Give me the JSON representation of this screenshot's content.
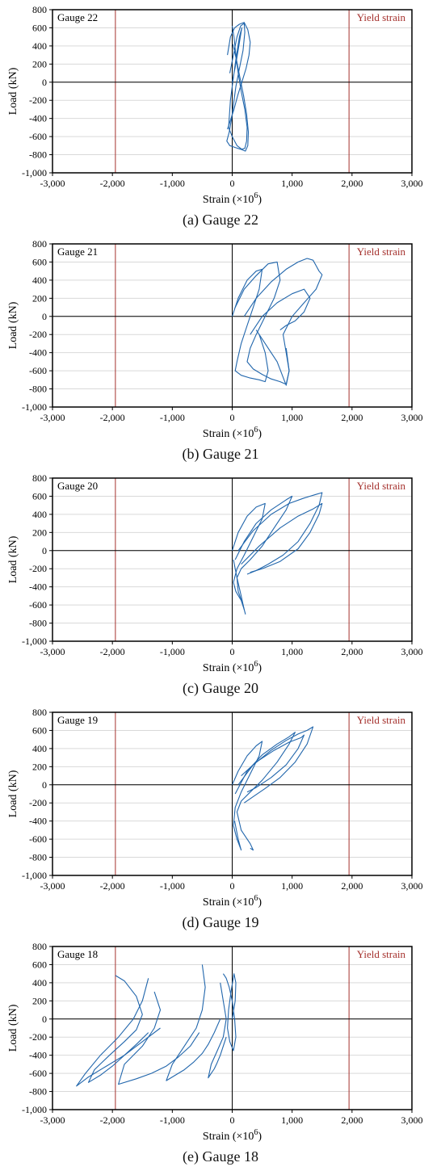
{
  "chart_data": [
    {
      "type": "line",
      "gauge_label": "Gauge 22",
      "caption": "(a) Gauge 22",
      "xlabel": "Strain (×10",
      "xlabel_exp": "6",
      "xlabel_close": ")",
      "ylabel": "Load (kN)",
      "xlim": [
        -3000,
        3000
      ],
      "ylim": [
        -1000,
        800
      ],
      "xticks": [
        -3000,
        -2000,
        -1000,
        0,
        1000,
        2000,
        3000
      ],
      "xtick_labels": [
        "-3,000",
        "-2,000",
        "-1,000",
        "0",
        "1,000",
        "2,000",
        "3,000"
      ],
      "yticks": [
        -1000,
        -800,
        -600,
        -400,
        -200,
        0,
        200,
        400,
        600,
        800
      ],
      "ytick_labels": [
        "-1,000",
        "-800",
        "-600",
        "-400",
        "-200",
        "0",
        "200",
        "400",
        "600",
        "800"
      ],
      "yield_strain": [
        -1950,
        1950
      ],
      "yield_label": "Yield strain",
      "grid": "horizontal",
      "series_color": "#2166ac",
      "series": [
        {
          "x": [
            0,
            60,
            110,
            160,
            120,
            60,
            10,
            -30,
            -60,
            0,
            80,
            160,
            210,
            240,
            250,
            210,
            150,
            100,
            60,
            30,
            0
          ],
          "y": [
            0,
            200,
            400,
            600,
            500,
            250,
            0,
            -200,
            -500,
            -600,
            -700,
            -740,
            -730,
            -650,
            -500,
            -300,
            -100,
            100,
            300,
            500,
            620
          ]
        },
        {
          "x": [
            -40,
            20,
            80,
            140,
            200,
            210,
            180,
            120,
            60,
            20,
            -10,
            -50,
            -90,
            -40,
            50,
            140,
            220,
            260,
            270,
            240,
            190,
            130,
            70,
            10
          ],
          "y": [
            100,
            300,
            500,
            620,
            650,
            550,
            350,
            150,
            -50,
            -250,
            -400,
            -550,
            -650,
            -700,
            -720,
            -740,
            -760,
            -700,
            -550,
            -350,
            -150,
            50,
            250,
            420
          ]
        },
        {
          "x": [
            -80,
            -30,
            40,
            120,
            200,
            260,
            300,
            280,
            230,
            160,
            90,
            30,
            -30,
            -80
          ],
          "y": [
            300,
            500,
            600,
            640,
            660,
            580,
            440,
            300,
            150,
            0,
            -150,
            -300,
            -420,
            -520
          ]
        }
      ]
    },
    {
      "type": "line",
      "gauge_label": "Gauge 21",
      "caption": "(b) Gauge 21",
      "xlabel": "Strain (×10",
      "xlabel_exp": "6",
      "xlabel_close": ")",
      "ylabel": "Load (kN)",
      "xlim": [
        -3000,
        3000
      ],
      "ylim": [
        -1000,
        800
      ],
      "xticks": [
        -3000,
        -2000,
        -1000,
        0,
        1000,
        2000,
        3000
      ],
      "xtick_labels": [
        "-3,000",
        "-2,000",
        "-1,000",
        "0",
        "1,000",
        "2,000",
        "3,000"
      ],
      "yticks": [
        -1000,
        -800,
        -600,
        -400,
        -200,
        0,
        200,
        400,
        600,
        800
      ],
      "ytick_labels": [
        "-1,000",
        "-800",
        "-600",
        "-400",
        "-200",
        "0",
        "200",
        "400",
        "600",
        "800"
      ],
      "yield_strain": [
        -1950,
        1950
      ],
      "yield_label": "Yield strain",
      "grid": "horizontal",
      "series_color": "#2166ac",
      "series": [
        {
          "x": [
            0,
            100,
            250,
            400,
            500,
            450,
            350,
            250,
            150,
            80,
            50,
            150,
            300,
            450,
            550,
            600,
            550,
            450
          ],
          "y": [
            0,
            200,
            400,
            500,
            520,
            300,
            100,
            -100,
            -300,
            -500,
            -600,
            -650,
            -680,
            -700,
            -720,
            -600,
            -400,
            -200
          ]
        },
        {
          "x": [
            50,
            200,
            400,
            600,
            750,
            800,
            700,
            550,
            400,
            300,
            250,
            350,
            500,
            650,
            800,
            900,
            950,
            900
          ],
          "y": [
            100,
            300,
            450,
            580,
            600,
            400,
            200,
            0,
            -200,
            -350,
            -500,
            -580,
            -640,
            -690,
            -720,
            -750,
            -600,
            -350
          ]
        },
        {
          "x": [
            200,
            400,
            650,
            900,
            1100,
            1250,
            1350,
            1400,
            1450,
            1500,
            1400,
            1200,
            1000,
            850,
            900,
            950,
            900,
            750,
            550,
            400
          ],
          "y": [
            0,
            200,
            380,
            520,
            600,
            640,
            620,
            560,
            500,
            460,
            300,
            150,
            0,
            -200,
            -400,
            -600,
            -760,
            -500,
            -300,
            -150
          ]
        },
        {
          "x": [
            300,
            500,
            750,
            1000,
            1200,
            1300,
            1200,
            1050,
            900,
            800
          ],
          "y": [
            -200,
            0,
            150,
            250,
            300,
            200,
            50,
            -50,
            -100,
            -150
          ]
        }
      ]
    },
    {
      "type": "line",
      "gauge_label": "Gauge 20",
      "caption": "(c) Gauge 20",
      "xlabel": "Strain (×10",
      "xlabel_exp": "6",
      "xlabel_close": ")",
      "ylabel": "Load (kN)",
      "xlim": [
        -3000,
        3000
      ],
      "ylim": [
        -1000,
        800
      ],
      "xticks": [
        -3000,
        -2000,
        -1000,
        0,
        1000,
        2000,
        3000
      ],
      "xtick_labels": [
        "-3,000",
        "-2,000",
        "-1,000",
        "0",
        "1,000",
        "2,000",
        "3,000"
      ],
      "yticks": [
        -1000,
        -800,
        -600,
        -400,
        -200,
        0,
        200,
        400,
        600,
        800
      ],
      "ytick_labels": [
        "-1,000",
        "-800",
        "-600",
        "-400",
        "-200",
        "0",
        "200",
        "400",
        "600",
        "800"
      ],
      "yield_strain": [
        -1950,
        1950
      ],
      "yield_label": "Yield strain",
      "grid": "horizontal",
      "series_color": "#2166ac",
      "series": [
        {
          "x": [
            0,
            100,
            250,
            400,
            550,
            500,
            350,
            200,
            80,
            20,
            60,
            150,
            200,
            150,
            80,
            20
          ],
          "y": [
            0,
            200,
            380,
            480,
            520,
            350,
            150,
            -50,
            -200,
            -350,
            -450,
            -550,
            -650,
            -500,
            -300,
            -100
          ]
        },
        {
          "x": [
            50,
            200,
            400,
            650,
            900,
            1000,
            900,
            700,
            500,
            300,
            150,
            80,
            100,
            180,
            220,
            180
          ],
          "y": [
            -100,
            100,
            300,
            450,
            560,
            600,
            450,
            250,
            50,
            -100,
            -200,
            -300,
            -450,
            -600,
            -700,
            -600
          ]
        },
        {
          "x": [
            100,
            350,
            650,
            950,
            1200,
            1400,
            1500,
            1450,
            1300,
            1100,
            850,
            600,
            400,
            250
          ],
          "y": [
            0,
            220,
            400,
            520,
            580,
            620,
            640,
            500,
            300,
            100,
            -50,
            -150,
            -220,
            -260
          ]
        },
        {
          "x": [
            150,
            450,
            800,
            1100,
            1350,
            1500,
            1450,
            1300,
            1100,
            800,
            500,
            300
          ],
          "y": [
            -150,
            50,
            250,
            380,
            460,
            520,
            400,
            200,
            20,
            -120,
            -200,
            -240
          ]
        }
      ]
    },
    {
      "type": "line",
      "gauge_label": "Gauge 19",
      "caption": "(d) Gauge 19",
      "xlabel": "Strain (×10",
      "xlabel_exp": "6",
      "xlabel_close": ")",
      "ylabel": "Load (kN)",
      "xlim": [
        -3000,
        3000
      ],
      "ylim": [
        -1000,
        800
      ],
      "xticks": [
        -3000,
        -2000,
        -1000,
        0,
        1000,
        2000,
        3000
      ],
      "xtick_labels": [
        "-3,000",
        "-2,000",
        "-1,000",
        "0",
        "1,000",
        "2,000",
        "3,000"
      ],
      "yticks": [
        -1000,
        -800,
        -600,
        -400,
        -200,
        0,
        200,
        400,
        600,
        800
      ],
      "ytick_labels": [
        "-1,000",
        "-800",
        "-600",
        "-400",
        "-200",
        "0",
        "200",
        "400",
        "600",
        "800"
      ],
      "yield_strain": [
        -1950,
        1950
      ],
      "yield_label": "Yield strain",
      "grid": "horizontal",
      "series_color": "#2166ac",
      "series": [
        {
          "x": [
            0,
            100,
            250,
            400,
            500,
            450,
            300,
            150,
            50,
            20,
            80,
            150,
            100,
            40
          ],
          "y": [
            0,
            150,
            320,
            430,
            480,
            320,
            120,
            -80,
            -250,
            -450,
            -600,
            -720,
            -600,
            -400
          ]
        },
        {
          "x": [
            50,
            250,
            500,
            750,
            950,
            1050,
            950,
            750,
            500,
            300,
            150,
            80,
            150,
            300,
            350,
            300
          ],
          "y": [
            -100,
            150,
            330,
            450,
            530,
            580,
            450,
            250,
            50,
            -80,
            -180,
            -300,
            -500,
            -650,
            -720,
            -700
          ]
        },
        {
          "x": [
            100,
            350,
            650,
            900,
            1100,
            1250,
            1350,
            1250,
            1050,
            800,
            550,
            350,
            200
          ],
          "y": [
            0,
            220,
            380,
            490,
            560,
            600,
            640,
            450,
            250,
            80,
            -40,
            -130,
            -200
          ]
        },
        {
          "x": [
            150,
            400,
            700,
            950,
            1150,
            1200,
            1100,
            900,
            650,
            400,
            250
          ],
          "y": [
            100,
            250,
            380,
            470,
            520,
            550,
            400,
            220,
            80,
            -30,
            -80
          ]
        }
      ]
    },
    {
      "type": "line",
      "gauge_label": "Gauge 18",
      "caption": "(e) Gauge 18",
      "xlabel": "Strain (×10",
      "xlabel_exp": "6",
      "xlabel_close": ")",
      "ylabel": "Load (kN)",
      "xlim": [
        -3000,
        3000
      ],
      "ylim": [
        -1000,
        800
      ],
      "xticks": [
        -3000,
        -2000,
        -1000,
        0,
        1000,
        2000,
        3000
      ],
      "xtick_labels": [
        "-3,000",
        "-2,000",
        "-1,000",
        "0",
        "1,000",
        "2,000",
        "3,000"
      ],
      "yticks": [
        -1000,
        -800,
        -600,
        -400,
        -200,
        0,
        200,
        400,
        600,
        800
      ],
      "ytick_labels": [
        "-1,000",
        "-800",
        "-600",
        "-400",
        "-200",
        "0",
        "200",
        "400",
        "600",
        "800"
      ],
      "yield_strain": [
        -1950,
        1950
      ],
      "yield_label": "Yield strain",
      "grid": "horizontal",
      "series_color": "#2166ac",
      "series": [
        {
          "x": [
            0,
            50,
            60,
            30,
            -20,
            -60,
            -80,
            -40,
            20,
            60,
            40,
            0,
            -50,
            -100,
            -150
          ],
          "y": [
            0,
            200,
            400,
            500,
            300,
            100,
            -100,
            -250,
            -350,
            -200,
            0,
            200,
            350,
            450,
            500
          ]
        },
        {
          "x": [
            -100,
            -150,
            -200,
            -250,
            -300,
            -350,
            -400,
            -350,
            -250,
            -150,
            -100,
            -150,
            -200
          ],
          "y": [
            -200,
            -300,
            -400,
            -480,
            -550,
            -600,
            -650,
            -500,
            -350,
            -200,
            0,
            200,
            400
          ]
        },
        {
          "x": [
            -200,
            -300,
            -400,
            -500,
            -650,
            -800,
            -950,
            -1100,
            -1000,
            -800,
            -600,
            -500,
            -450,
            -500
          ],
          "y": [
            0,
            -150,
            -280,
            -380,
            -480,
            -560,
            -620,
            -680,
            -500,
            -300,
            -100,
            100,
            350,
            600
          ]
        },
        {
          "x": [
            -550,
            -700,
            -900,
            -1100,
            -1350,
            -1600,
            -1900,
            -1800,
            -1500,
            -1300,
            -1200,
            -1300
          ],
          "y": [
            -150,
            -300,
            -420,
            -520,
            -600,
            -660,
            -720,
            -500,
            -300,
            -100,
            100,
            300
          ]
        },
        {
          "x": [
            -1200,
            -1500,
            -1800,
            -2100,
            -2400,
            -2600,
            -2450,
            -2200,
            -1900,
            -1650,
            -1500,
            -1400
          ],
          "y": [
            -100,
            -250,
            -400,
            -520,
            -640,
            -740,
            -600,
            -400,
            -200,
            0,
            200,
            450
          ]
        },
        {
          "x": [
            -1400,
            -1600,
            -1800,
            -2000,
            -2200,
            -2400,
            -2300,
            -2050,
            -1800,
            -1600,
            -1500,
            -1600,
            -1800,
            -1950
          ],
          "y": [
            -150,
            -280,
            -400,
            -520,
            -620,
            -700,
            -560,
            -400,
            -250,
            -120,
            50,
            250,
            420,
            480
          ]
        }
      ]
    }
  ]
}
